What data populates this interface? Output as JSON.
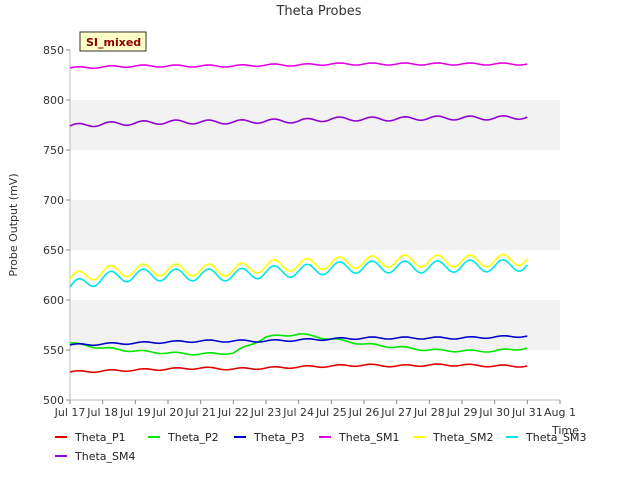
{
  "chart_data": {
    "type": "line",
    "title": "Theta Probes",
    "xlabel": "Time",
    "ylabel": "Probe Output (mV)",
    "site_badge": "SI_mixed",
    "xlim": [
      "2024-07-17",
      "2024-08-01"
    ],
    "ylim": [
      500,
      850
    ],
    "x_ticks": [
      "Jul 17",
      "Jul 18",
      "Jul 19",
      "Jul 20",
      "Jul 21",
      "Jul 22",
      "Jul 23",
      "Jul 24",
      "Jul 25",
      "Jul 26",
      "Jul 27",
      "Jul 28",
      "Jul 29",
      "Jul 30",
      "Jul 31",
      "Aug 1"
    ],
    "y_ticks": [
      500,
      550,
      600,
      650,
      700,
      750,
      800,
      850
    ],
    "grid": "horizontal bands",
    "legend_position": "bottom",
    "x": [
      "2024-07-17",
      "2024-07-18",
      "2024-07-19",
      "2024-07-20",
      "2024-07-21",
      "2024-07-22",
      "2024-07-23",
      "2024-07-24",
      "2024-07-25",
      "2024-07-26",
      "2024-07-27",
      "2024-07-28",
      "2024-07-29",
      "2024-07-30",
      "2024-07-31"
    ],
    "series": [
      {
        "name": "Theta_P1",
        "color": "#e00000",
        "values": [
          528,
          529,
          530,
          531,
          532,
          531,
          532,
          533,
          534,
          535,
          534,
          535,
          535,
          534,
          534
        ]
      },
      {
        "name": "Theta_P2",
        "color": "#00e600",
        "values": [
          557,
          552,
          549,
          547,
          546,
          547,
          563,
          566,
          561,
          556,
          553,
          550,
          549,
          549,
          552
        ]
      },
      {
        "name": "Theta_P3",
        "color": "#0000cc",
        "values": [
          555,
          556,
          557,
          558,
          559,
          559,
          559,
          560,
          561,
          562,
          562,
          562,
          562,
          563,
          564
        ]
      },
      {
        "name": "Theta_SM1",
        "color": "#e600e6",
        "values": [
          832,
          833,
          834,
          834,
          834,
          834,
          835,
          835,
          836,
          836,
          836,
          836,
          836,
          836,
          836
        ]
      },
      {
        "name": "Theta_SM2",
        "color": "#ffff00",
        "values": [
          621,
          628,
          630,
          630,
          630,
          630,
          634,
          635,
          637,
          638,
          639,
          639,
          639,
          639,
          641
        ]
      },
      {
        "name": "Theta_SM3",
        "color": "#00e6e6",
        "values": [
          613,
          622,
          625,
          625,
          625,
          625,
          628,
          629,
          632,
          633,
          633,
          633,
          634,
          634,
          635
        ]
      },
      {
        "name": "Theta_SM4",
        "color": "#9400d3",
        "values": [
          774,
          776,
          777,
          778,
          778,
          778,
          779,
          779,
          781,
          781,
          781,
          782,
          782,
          782,
          783
        ]
      }
    ]
  }
}
